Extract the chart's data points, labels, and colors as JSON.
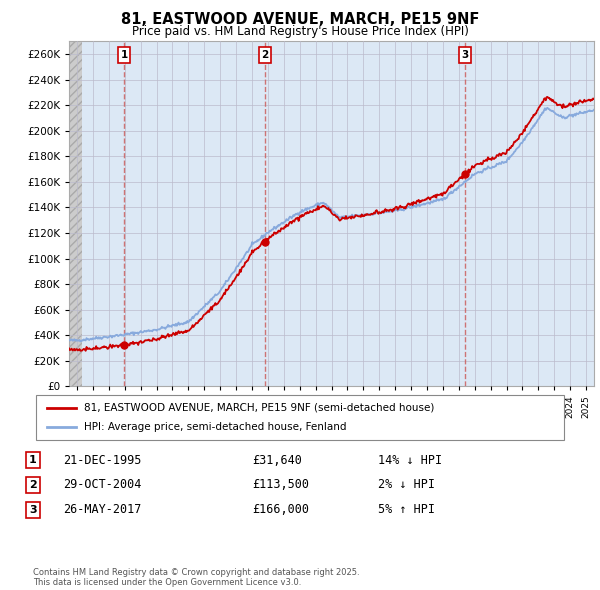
{
  "title": "81, EASTWOOD AVENUE, MARCH, PE15 9NF",
  "subtitle": "Price paid vs. HM Land Registry's House Price Index (HPI)",
  "ylim": [
    0,
    270000
  ],
  "yticks": [
    0,
    20000,
    40000,
    60000,
    80000,
    100000,
    120000,
    140000,
    160000,
    180000,
    200000,
    220000,
    240000,
    260000
  ],
  "xlim_start": 1992.5,
  "xlim_end": 2025.5,
  "sale_color": "#cc0000",
  "hpi_color": "#88aadd",
  "vline_color": "#cc6666",
  "label_sale": "81, EASTWOOD AVENUE, MARCH, PE15 9NF (semi-detached house)",
  "label_hpi": "HPI: Average price, semi-detached house, Fenland",
  "transactions": [
    {
      "num": 1,
      "date_label": "21-DEC-1995",
      "price": "£31,640",
      "hpi_rel": "14% ↓ HPI",
      "year": 1995.97
    },
    {
      "num": 2,
      "date_label": "29-OCT-2004",
      "price": "£113,500",
      "hpi_rel": "2% ↓ HPI",
      "year": 2004.83
    },
    {
      "num": 3,
      "date_label": "26-MAY-2017",
      "price": "£166,000",
      "hpi_rel": "5% ↑ HPI",
      "year": 2017.4
    }
  ],
  "footer": "Contains HM Land Registry data © Crown copyright and database right 2025.\nThis data is licensed under the Open Government Licence v3.0.",
  "chart_bg": "#dce8f5",
  "hatch_bg": "#e8e8e8",
  "grid_color": "#bbbbcc",
  "box_edge_color": "#cc0000"
}
